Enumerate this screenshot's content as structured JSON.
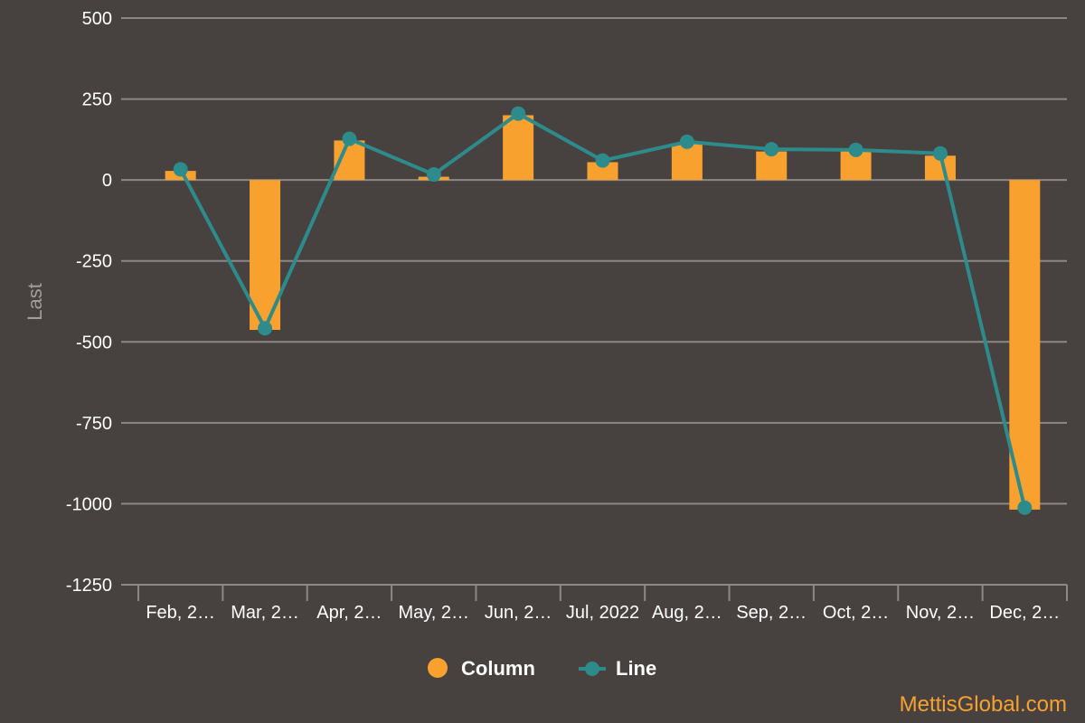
{
  "chart_data": {
    "type": "bar",
    "categories": [
      "Feb, 2…",
      "Mar, 2…",
      "Apr, 2…",
      "May, 2…",
      "Jun, 2…",
      "Jul, 2022",
      "Aug, 2…",
      "Sep, 2…",
      "Oct, 2…",
      "Nov, 2…",
      "Dec, 2…"
    ],
    "series": [
      {
        "name": "Column",
        "type": "bar",
        "color": "#f9a12e",
        "values": [
          28,
          -463,
          122,
          10,
          200,
          55,
          113,
          88,
          90,
          75,
          -1018
        ]
      },
      {
        "name": "Line",
        "type": "line",
        "color": "#2e8b8b",
        "values": [
          33,
          -458,
          127,
          17,
          205,
          60,
          118,
          95,
          93,
          82,
          -1012
        ]
      }
    ],
    "ylabel": "Last",
    "ylim": [
      -1250,
      500
    ],
    "yticks": [
      500,
      250,
      0,
      -250,
      -500,
      -750,
      -1000,
      -1250
    ],
    "grid": true,
    "legend_position": "bottom-center"
  },
  "watermark": "MettisGlobal.com"
}
